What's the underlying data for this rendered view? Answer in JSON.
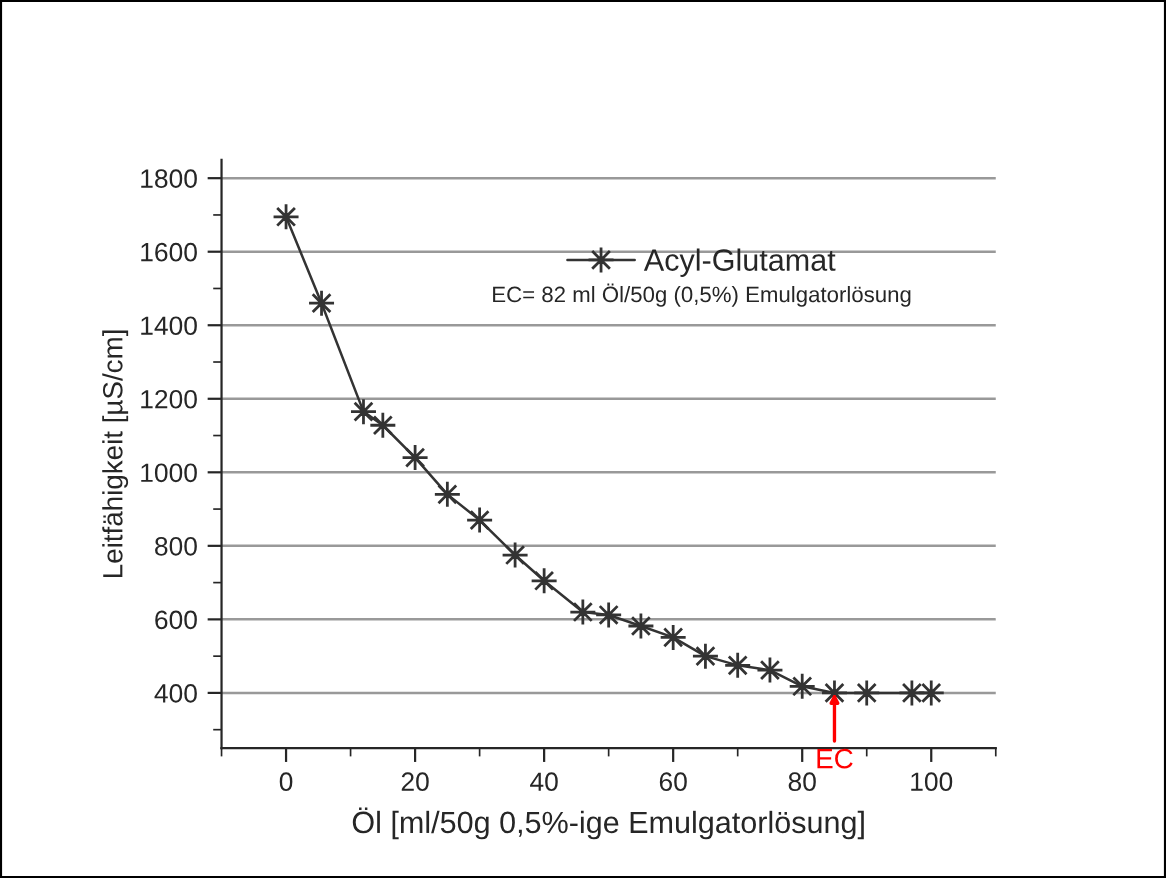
{
  "chart_data": {
    "type": "line",
    "xlabel": "Öl [ml/50g 0,5%-ige Emulgatorlösung]",
    "ylabel": "Leitfähigkeit [µS/cm]",
    "x": [
      0,
      5.5,
      12,
      15,
      20,
      25,
      30,
      35.5,
      40,
      46,
      50,
      55,
      60,
      65,
      70,
      75,
      80,
      85,
      90,
      97,
      100
    ],
    "series": [
      {
        "name": "Acyl-Glutamat",
        "color": "#333333",
        "values": [
          1695,
          1460,
          1165,
          1128,
          1040,
          940,
          870,
          775,
          705,
          620,
          612,
          582,
          551,
          500,
          475,
          462,
          418,
          400,
          400,
          400,
          400
        ]
      }
    ],
    "xlim": [
      -10,
      110
    ],
    "xticks": [
      0,
      20,
      40,
      60,
      80,
      100
    ],
    "ylim": [
      250,
      1850
    ],
    "yticks": [
      400,
      600,
      800,
      1000,
      1200,
      1400,
      1600,
      1800
    ],
    "annotations": [
      {
        "text": "EC",
        "x": 85,
        "y": 400
      },
      "EC= 82 ml Öl/50g (0,5%) Emulgatorlösung"
    ],
    "grid": "y",
    "legend": "top",
    "marker": "star",
    "line_style": "solid"
  }
}
